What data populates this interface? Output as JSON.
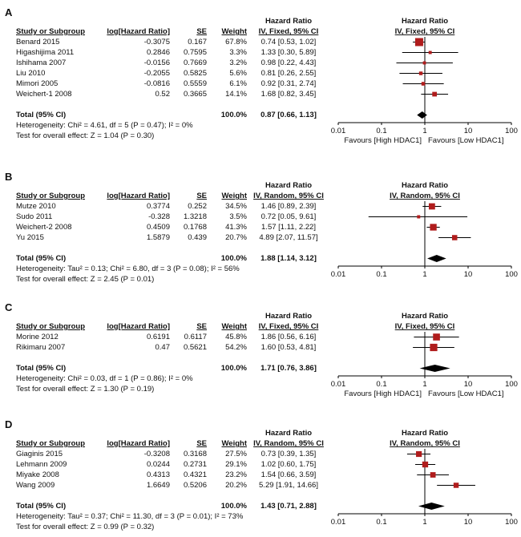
{
  "figure": {
    "background": "#ffffff",
    "text_color": "#111111",
    "marker_color": "#b01c1c",
    "line_color": "#000000"
  },
  "chart_data": [
    {
      "type": "scatter",
      "variant": "forest-plot",
      "panel": "A",
      "effect_label": "Hazard Ratio",
      "model_label": "IV, Fixed, 95% CI",
      "columns": [
        "Study or Subgroup",
        "log[Hazard Ratio]",
        "SE",
        "Weight",
        "IV, Fixed, 95% CI"
      ],
      "x_scale": "log",
      "x_ticks": [
        "0.01",
        "0.1",
        "1",
        "10",
        "100"
      ],
      "favours_left": "Favours [High HDAC1]",
      "favours_right": "Favours [Low HDAC1]",
      "studies": [
        {
          "name": "Benard 2015",
          "log_hr": "-0.3075",
          "se": "0.167",
          "weight": "67.8%",
          "weight_pct": 67.8,
          "ci_text": "0.74 [0.53, 1.02]",
          "hr": 0.74,
          "lo": 0.53,
          "hi": 1.02
        },
        {
          "name": "Higashijima 2011",
          "log_hr": "0.2846",
          "se": "0.7595",
          "weight": "3.3%",
          "weight_pct": 3.3,
          "ci_text": "1.33 [0.30, 5.89]",
          "hr": 1.33,
          "lo": 0.3,
          "hi": 5.89
        },
        {
          "name": "Ishihama 2007",
          "log_hr": "-0.0156",
          "se": "0.7669",
          "weight": "3.2%",
          "weight_pct": 3.2,
          "ci_text": "0.98 [0.22, 4.43]",
          "hr": 0.98,
          "lo": 0.22,
          "hi": 4.43
        },
        {
          "name": "Liu 2010",
          "log_hr": "-0.2055",
          "se": "0.5825",
          "weight": "5.6%",
          "weight_pct": 5.6,
          "ci_text": "0.81 [0.26, 2.55]",
          "hr": 0.81,
          "lo": 0.26,
          "hi": 2.55
        },
        {
          "name": "Mimori 2005",
          "log_hr": "-0.0816",
          "se": "0.5559",
          "weight": "6.1%",
          "weight_pct": 6.1,
          "ci_text": "0.92 [0.31, 2.74]",
          "hr": 0.92,
          "lo": 0.31,
          "hi": 2.74
        },
        {
          "name": "Weichert-1 2008",
          "log_hr": "0.52",
          "se": "0.3665",
          "weight": "14.1%",
          "weight_pct": 14.1,
          "ci_text": "1.68 [0.82, 3.45]",
          "hr": 1.68,
          "lo": 0.82,
          "hi": 3.45
        }
      ],
      "total": {
        "label": "Total (95% CI)",
        "weight": "100.0%",
        "ci_text": "0.87 [0.66, 1.13]",
        "hr": 0.87,
        "lo": 0.66,
        "hi": 1.13
      },
      "heterogeneity": "Heterogeneity: Chi² = 4.61, df = 5 (P = 0.47); I² = 0%",
      "overall_effect": "Test for overall effect: Z = 1.04 (P = 0.30)"
    },
    {
      "type": "scatter",
      "variant": "forest-plot",
      "panel": "B",
      "effect_label": "Hazard Ratio",
      "model_label": "IV, Random, 95% CI",
      "columns": [
        "Study or Subgroup",
        "log[Hazard Ratio]",
        "SE",
        "Weight",
        "IV, Random, 95% CI"
      ],
      "x_scale": "log",
      "x_ticks": [
        "0.01",
        "0.1",
        "1",
        "10",
        "100"
      ],
      "studies": [
        {
          "name": "Mutze 2010",
          "log_hr": "0.3774",
          "se": "0.252",
          "weight": "34.5%",
          "weight_pct": 34.5,
          "ci_text": "1.46 [0.89, 2.39]",
          "hr": 1.46,
          "lo": 0.89,
          "hi": 2.39
        },
        {
          "name": "Sudo 2011",
          "log_hr": "-0.328",
          "se": "1.3218",
          "weight": "3.5%",
          "weight_pct": 3.5,
          "ci_text": "0.72 [0.05, 9.61]",
          "hr": 0.72,
          "lo": 0.05,
          "hi": 9.61
        },
        {
          "name": "Weichert-2 2008",
          "log_hr": "0.4509",
          "se": "0.1768",
          "weight": "41.3%",
          "weight_pct": 41.3,
          "ci_text": "1.57 [1.11, 2.22]",
          "hr": 1.57,
          "lo": 1.11,
          "hi": 2.22
        },
        {
          "name": "Yu 2015",
          "log_hr": "1.5879",
          "se": "0.439",
          "weight": "20.7%",
          "weight_pct": 20.7,
          "ci_text": "4.89 [2.07, 11.57]",
          "hr": 4.89,
          "lo": 2.07,
          "hi": 11.57
        }
      ],
      "total": {
        "label": "Total (95% CI)",
        "weight": "100.0%",
        "ci_text": "1.88 [1.14, 3.12]",
        "hr": 1.88,
        "lo": 1.14,
        "hi": 3.12
      },
      "heterogeneity": "Heterogeneity: Tau² = 0.13; Chi² = 6.80, df = 3 (P = 0.08); I² = 56%",
      "overall_effect": "Test for overall effect: Z = 2.45 (P = 0.01)"
    },
    {
      "type": "scatter",
      "variant": "forest-plot",
      "panel": "C",
      "effect_label": "Hazard Ratio",
      "model_label": "IV, Fixed, 95% CI",
      "columns": [
        "Study or Subgroup",
        "log[Hazard Ratio]",
        "SE",
        "Weight",
        "IV, Fixed, 95% CI"
      ],
      "x_scale": "log",
      "x_ticks": [
        "0.01",
        "0.1",
        "1",
        "10",
        "100"
      ],
      "favours_left": "Favours [High HDAC1]",
      "favours_right": "Favours [Low HDAC1]",
      "studies": [
        {
          "name": "Morine 2012",
          "log_hr": "0.6191",
          "se": "0.6117",
          "weight": "45.8%",
          "weight_pct": 45.8,
          "ci_text": "1.86 [0.56, 6.16]",
          "hr": 1.86,
          "lo": 0.56,
          "hi": 6.16
        },
        {
          "name": "Rikimaru 2007",
          "log_hr": "0.47",
          "se": "0.5621",
          "weight": "54.2%",
          "weight_pct": 54.2,
          "ci_text": "1.60 [0.53, 4.81]",
          "hr": 1.6,
          "lo": 0.53,
          "hi": 4.81
        }
      ],
      "total": {
        "label": "Total (95% CI)",
        "weight": "100.0%",
        "ci_text": "1.71 [0.76, 3.86]",
        "hr": 1.71,
        "lo": 0.76,
        "hi": 3.86
      },
      "heterogeneity": "Heterogeneity: Chi² = 0.03, df = 1 (P = 0.86); I² = 0%",
      "overall_effect": "Test for overall effect: Z = 1.30 (P = 0.19)"
    },
    {
      "type": "scatter",
      "variant": "forest-plot",
      "panel": "D",
      "effect_label": "Hazard Ratio",
      "model_label": "IV, Random, 95% CI",
      "columns": [
        "Study or Subgroup",
        "log[Hazard Ratio]",
        "SE",
        "Weight",
        "IV, Random, 95% CI"
      ],
      "x_scale": "log",
      "x_ticks": [
        "0.01",
        "0.1",
        "1",
        "10",
        "100"
      ],
      "studies": [
        {
          "name": "Giaginis 2015",
          "log_hr": "-0.3208",
          "se": "0.3168",
          "weight": "27.5%",
          "weight_pct": 27.5,
          "ci_text": "0.73 [0.39, 1.35]",
          "hr": 0.73,
          "lo": 0.39,
          "hi": 1.35
        },
        {
          "name": "Lehmann 2009",
          "log_hr": "0.0244",
          "se": "0.2731",
          "weight": "29.1%",
          "weight_pct": 29.1,
          "ci_text": "1.02 [0.60, 1.75]",
          "hr": 1.02,
          "lo": 0.6,
          "hi": 1.75
        },
        {
          "name": "Miyake 2008",
          "log_hr": "0.4313",
          "se": "0.4321",
          "weight": "23.2%",
          "weight_pct": 23.2,
          "ci_text": "1.54 [0.66, 3.59]",
          "hr": 1.54,
          "lo": 0.66,
          "hi": 3.59
        },
        {
          "name": "Wang 2009",
          "log_hr": "1.6649",
          "se": "0.5206",
          "weight": "20.2%",
          "weight_pct": 20.2,
          "ci_text": "5.29 [1.91, 14.66]",
          "hr": 5.29,
          "lo": 1.91,
          "hi": 14.66
        }
      ],
      "total": {
        "label": "Total (95% CI)",
        "weight": "100.0%",
        "ci_text": "1.43 [0.71, 2.88]",
        "hr": 1.43,
        "lo": 0.71,
        "hi": 2.88
      },
      "heterogeneity": "Heterogeneity: Tau² = 0.37; Chi² = 11.30, df = 3 (P = 0.01); I² = 73%",
      "overall_effect": "Test for overall effect: Z = 0.99 (P = 0.32)"
    }
  ]
}
